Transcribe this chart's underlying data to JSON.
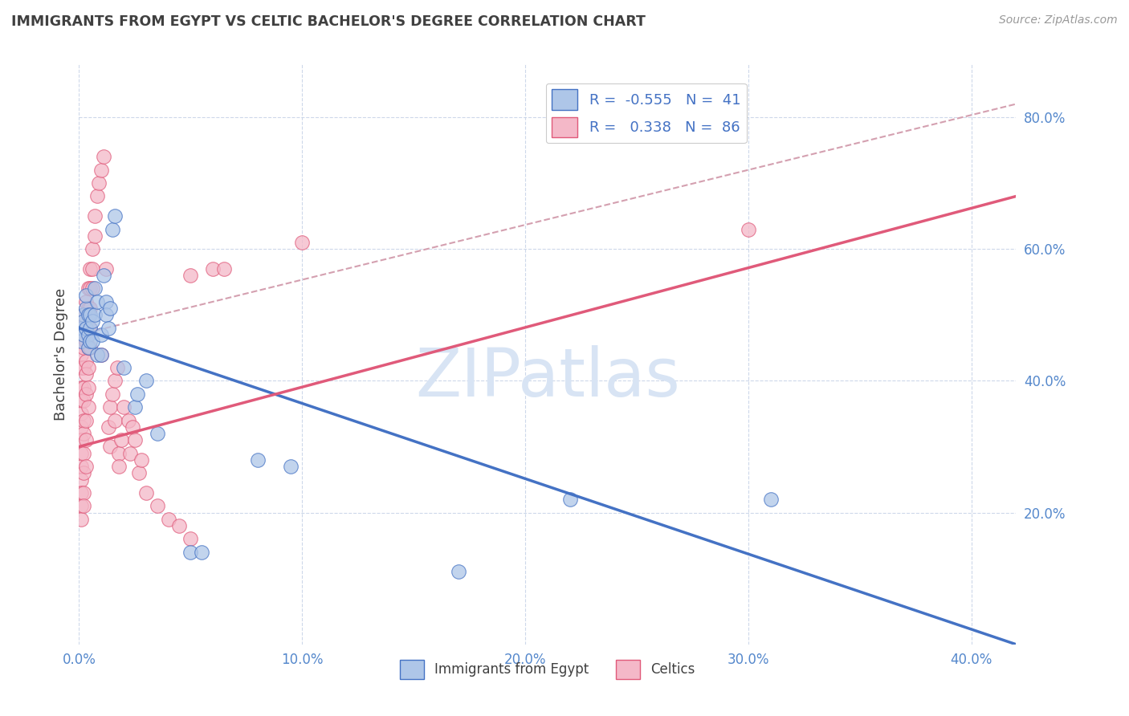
{
  "title": "IMMIGRANTS FROM EGYPT VS CELTIC BACHELOR'S DEGREE CORRELATION CHART",
  "source": "Source: ZipAtlas.com",
  "ylabel": "Bachelor's Degree",
  "watermark": "ZIPatlas",
  "xlim": [
    0.0,
    0.42
  ],
  "ylim": [
    0.0,
    0.88
  ],
  "xtick_labels": [
    "0.0%",
    "10.0%",
    "20.0%",
    "30.0%",
    "40.0%"
  ],
  "xtick_vals": [
    0.0,
    0.1,
    0.2,
    0.3,
    0.4
  ],
  "ytick_labels": [
    "20.0%",
    "40.0%",
    "60.0%",
    "80.0%"
  ],
  "ytick_vals": [
    0.2,
    0.4,
    0.6,
    0.8
  ],
  "legend_items": [
    {
      "label": "Immigrants from Egypt",
      "color": "#aec6e8",
      "R": -0.555,
      "N": 41
    },
    {
      "label": "Celtics",
      "color": "#f4b8c8",
      "R": 0.338,
      "N": 86
    }
  ],
  "blue_scatter": [
    [
      0.001,
      0.48
    ],
    [
      0.001,
      0.46
    ],
    [
      0.002,
      0.5
    ],
    [
      0.002,
      0.47
    ],
    [
      0.002,
      0.49
    ],
    [
      0.003,
      0.51
    ],
    [
      0.003,
      0.48
    ],
    [
      0.003,
      0.53
    ],
    [
      0.004,
      0.5
    ],
    [
      0.004,
      0.47
    ],
    [
      0.004,
      0.45
    ],
    [
      0.005,
      0.5
    ],
    [
      0.005,
      0.48
    ],
    [
      0.005,
      0.46
    ],
    [
      0.006,
      0.49
    ],
    [
      0.006,
      0.46
    ],
    [
      0.007,
      0.54
    ],
    [
      0.007,
      0.5
    ],
    [
      0.008,
      0.52
    ],
    [
      0.008,
      0.44
    ],
    [
      0.01,
      0.47
    ],
    [
      0.01,
      0.44
    ],
    [
      0.011,
      0.56
    ],
    [
      0.012,
      0.52
    ],
    [
      0.012,
      0.5
    ],
    [
      0.013,
      0.48
    ],
    [
      0.014,
      0.51
    ],
    [
      0.015,
      0.63
    ],
    [
      0.016,
      0.65
    ],
    [
      0.02,
      0.42
    ],
    [
      0.025,
      0.36
    ],
    [
      0.026,
      0.38
    ],
    [
      0.03,
      0.4
    ],
    [
      0.035,
      0.32
    ],
    [
      0.05,
      0.14
    ],
    [
      0.055,
      0.14
    ],
    [
      0.08,
      0.28
    ],
    [
      0.095,
      0.27
    ],
    [
      0.17,
      0.11
    ],
    [
      0.22,
      0.22
    ],
    [
      0.31,
      0.22
    ]
  ],
  "pink_scatter": [
    [
      0.001,
      0.48
    ],
    [
      0.001,
      0.46
    ],
    [
      0.001,
      0.44
    ],
    [
      0.001,
      0.42
    ],
    [
      0.001,
      0.39
    ],
    [
      0.001,
      0.37
    ],
    [
      0.001,
      0.35
    ],
    [
      0.001,
      0.33
    ],
    [
      0.001,
      0.31
    ],
    [
      0.001,
      0.29
    ],
    [
      0.001,
      0.27
    ],
    [
      0.001,
      0.25
    ],
    [
      0.001,
      0.23
    ],
    [
      0.001,
      0.21
    ],
    [
      0.001,
      0.19
    ],
    [
      0.002,
      0.5
    ],
    [
      0.002,
      0.47
    ],
    [
      0.002,
      0.45
    ],
    [
      0.002,
      0.42
    ],
    [
      0.002,
      0.39
    ],
    [
      0.002,
      0.37
    ],
    [
      0.002,
      0.34
    ],
    [
      0.002,
      0.32
    ],
    [
      0.002,
      0.29
    ],
    [
      0.002,
      0.26
    ],
    [
      0.002,
      0.23
    ],
    [
      0.002,
      0.21
    ],
    [
      0.003,
      0.52
    ],
    [
      0.003,
      0.49
    ],
    [
      0.003,
      0.46
    ],
    [
      0.003,
      0.43
    ],
    [
      0.003,
      0.41
    ],
    [
      0.003,
      0.38
    ],
    [
      0.003,
      0.34
    ],
    [
      0.003,
      0.31
    ],
    [
      0.003,
      0.27
    ],
    [
      0.004,
      0.54
    ],
    [
      0.004,
      0.51
    ],
    [
      0.004,
      0.48
    ],
    [
      0.004,
      0.45
    ],
    [
      0.004,
      0.42
    ],
    [
      0.004,
      0.39
    ],
    [
      0.004,
      0.36
    ],
    [
      0.005,
      0.57
    ],
    [
      0.005,
      0.54
    ],
    [
      0.005,
      0.51
    ],
    [
      0.005,
      0.48
    ],
    [
      0.005,
      0.45
    ],
    [
      0.006,
      0.6
    ],
    [
      0.006,
      0.57
    ],
    [
      0.006,
      0.54
    ],
    [
      0.007,
      0.65
    ],
    [
      0.007,
      0.62
    ],
    [
      0.008,
      0.68
    ],
    [
      0.009,
      0.7
    ],
    [
      0.01,
      0.72
    ],
    [
      0.01,
      0.44
    ],
    [
      0.011,
      0.74
    ],
    [
      0.012,
      0.57
    ],
    [
      0.013,
      0.33
    ],
    [
      0.014,
      0.36
    ],
    [
      0.014,
      0.3
    ],
    [
      0.015,
      0.38
    ],
    [
      0.016,
      0.4
    ],
    [
      0.016,
      0.34
    ],
    [
      0.017,
      0.42
    ],
    [
      0.018,
      0.29
    ],
    [
      0.018,
      0.27
    ],
    [
      0.019,
      0.31
    ],
    [
      0.02,
      0.36
    ],
    [
      0.022,
      0.34
    ],
    [
      0.023,
      0.29
    ],
    [
      0.024,
      0.33
    ],
    [
      0.025,
      0.31
    ],
    [
      0.027,
      0.26
    ],
    [
      0.028,
      0.28
    ],
    [
      0.03,
      0.23
    ],
    [
      0.035,
      0.21
    ],
    [
      0.04,
      0.19
    ],
    [
      0.045,
      0.18
    ],
    [
      0.05,
      0.16
    ],
    [
      0.05,
      0.56
    ],
    [
      0.06,
      0.57
    ],
    [
      0.065,
      0.57
    ],
    [
      0.1,
      0.61
    ],
    [
      0.3,
      0.63
    ]
  ],
  "blue_line": {
    "x0": 0.0,
    "y0": 0.48,
    "x1": 0.42,
    "y1": 0.0
  },
  "pink_line": {
    "x0": 0.0,
    "y0": 0.3,
    "x1": 0.42,
    "y1": 0.68
  },
  "dashed_line": {
    "x0": 0.0,
    "y0": 0.47,
    "x1": 0.42,
    "y1": 0.82
  },
  "blue_color": "#4472c4",
  "pink_color": "#e05a7a",
  "dashed_color": "#d4a0b0",
  "scatter_blue_color": "#aec6e8",
  "scatter_pink_color": "#f4b8c8",
  "background_color": "#ffffff",
  "grid_color": "#c8d4e8",
  "legend_text_color": "#4472c4",
  "title_color": "#404040",
  "source_color": "#999999",
  "watermark_color": "#d8e4f4"
}
